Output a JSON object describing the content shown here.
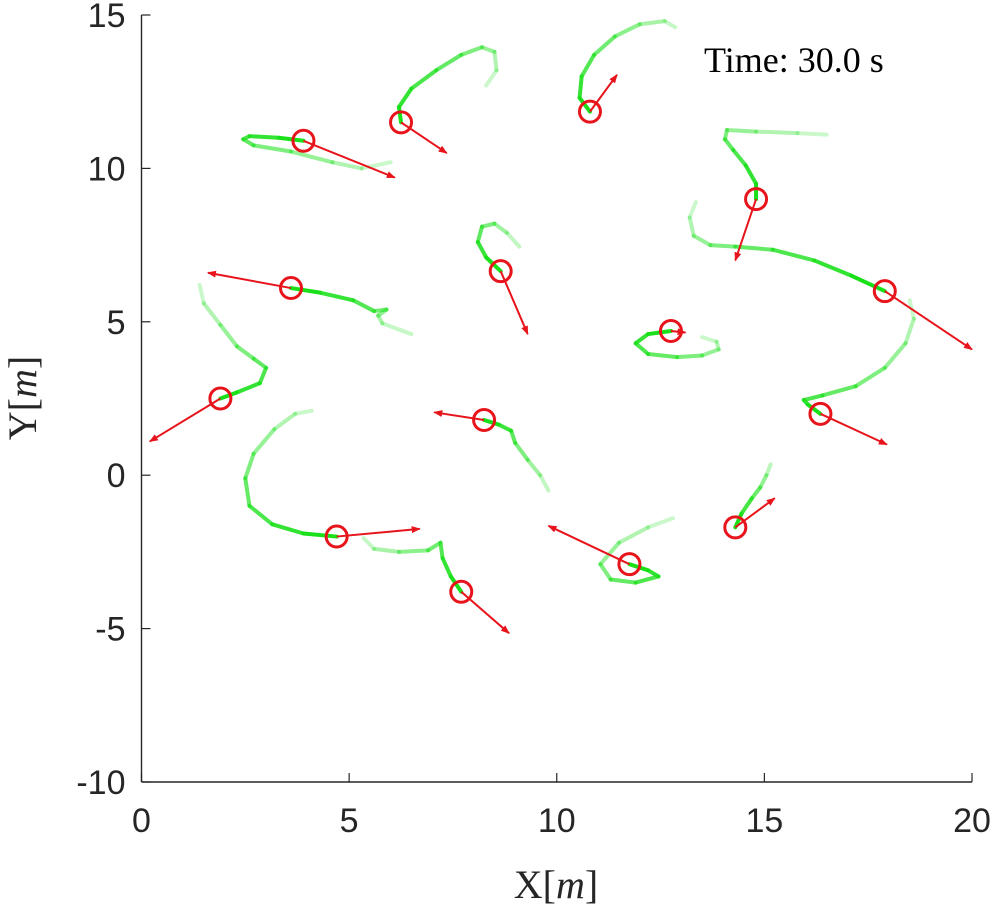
{
  "chart_data": {
    "type": "scatter",
    "title": "",
    "annotation": "Time: 30.0 s",
    "xlabel": {
      "prefix": "X[",
      "unit": "m",
      "suffix": "]"
    },
    "ylabel": {
      "prefix": "Y[",
      "unit": "m",
      "suffix": "]"
    },
    "xlim": [
      0,
      20
    ],
    "ylim": [
      -10,
      15
    ],
    "xticks": [
      0,
      5,
      10,
      15,
      20
    ],
    "yticks": [
      -10,
      -5,
      0,
      5,
      10,
      15
    ],
    "xtick_labels": [
      "0",
      "5",
      "10",
      "15",
      "20"
    ],
    "ytick_labels": [
      "-10",
      "-5",
      "0",
      "5",
      "10",
      "15"
    ],
    "grid": false,
    "colors": {
      "agent": "#e8141b",
      "trail": "#19e019",
      "axis": "#262626"
    },
    "agents": [
      {
        "x": 3.9,
        "y": 10.9,
        "vx": 2.2,
        "vy": -1.2,
        "trail": [
          [
            3.9,
            10.9
          ],
          [
            3.3,
            11.0
          ],
          [
            2.6,
            11.05
          ],
          [
            2.45,
            10.95
          ],
          [
            2.7,
            10.75
          ],
          [
            3.6,
            10.55
          ],
          [
            4.6,
            10.2
          ],
          [
            5.3,
            10.0
          ],
          [
            6.0,
            10.2
          ]
        ]
      },
      {
        "x": 6.25,
        "y": 11.5,
        "vx": 1.1,
        "vy": -1.0,
        "trail": [
          [
            6.25,
            11.5
          ],
          [
            6.2,
            12.0
          ],
          [
            6.5,
            12.6
          ],
          [
            7.1,
            13.2
          ],
          [
            7.7,
            13.7
          ],
          [
            8.2,
            13.95
          ],
          [
            8.5,
            13.8
          ],
          [
            8.55,
            13.2
          ],
          [
            8.3,
            12.7
          ]
        ]
      },
      {
        "x": 10.8,
        "y": 11.85,
        "vx": 0.65,
        "vy": 1.2,
        "trail": [
          [
            10.8,
            11.85
          ],
          [
            10.55,
            12.3
          ],
          [
            10.6,
            13.0
          ],
          [
            10.9,
            13.7
          ],
          [
            11.4,
            14.3
          ],
          [
            12.0,
            14.7
          ],
          [
            12.6,
            14.8
          ],
          [
            12.85,
            14.6
          ]
        ]
      },
      {
        "x": 14.8,
        "y": 9.0,
        "vx": -0.5,
        "vy": -2.0,
        "trail": [
          [
            14.8,
            9.0
          ],
          [
            14.8,
            9.5
          ],
          [
            14.55,
            10.1
          ],
          [
            14.25,
            10.6
          ],
          [
            14.05,
            10.95
          ],
          [
            14.1,
            11.25
          ],
          [
            14.8,
            11.2
          ],
          [
            15.8,
            11.15
          ],
          [
            16.5,
            11.1
          ]
        ]
      },
      {
        "x": 17.9,
        "y": 6.0,
        "vx": 2.1,
        "vy": -1.9,
        "trail": [
          [
            17.9,
            6.0
          ],
          [
            17.1,
            6.5
          ],
          [
            16.2,
            7.0
          ],
          [
            15.2,
            7.35
          ],
          [
            14.3,
            7.45
          ],
          [
            13.7,
            7.5
          ],
          [
            13.3,
            7.8
          ],
          [
            13.2,
            8.4
          ],
          [
            13.35,
            8.9
          ]
        ]
      },
      {
        "x": 16.35,
        "y": 2.0,
        "vx": 1.6,
        "vy": -1.0,
        "trail": [
          [
            16.35,
            2.0
          ],
          [
            16.05,
            2.3
          ],
          [
            15.95,
            2.45
          ],
          [
            16.4,
            2.6
          ],
          [
            17.2,
            2.9
          ],
          [
            17.9,
            3.5
          ],
          [
            18.4,
            4.3
          ],
          [
            18.6,
            5.1
          ],
          [
            18.5,
            5.7
          ]
        ]
      },
      {
        "x": 14.3,
        "y": -1.7,
        "vx": 0.95,
        "vy": 0.95,
        "trail": [
          [
            14.3,
            -1.7
          ],
          [
            14.45,
            -1.25
          ],
          [
            14.7,
            -0.75
          ],
          [
            14.9,
            -0.4
          ],
          [
            15.05,
            0.0
          ],
          [
            15.15,
            0.35
          ]
        ]
      },
      {
        "x": 11.75,
        "y": -2.9,
        "vx": -1.95,
        "vy": 1.25,
        "trail": [
          [
            11.75,
            -2.9
          ],
          [
            12.2,
            -3.1
          ],
          [
            12.45,
            -3.3
          ],
          [
            11.9,
            -3.5
          ],
          [
            11.3,
            -3.4
          ],
          [
            11.05,
            -2.9
          ],
          [
            11.5,
            -2.2
          ],
          [
            12.2,
            -1.7
          ],
          [
            12.8,
            -1.4
          ]
        ]
      },
      {
        "x": 7.7,
        "y": -3.8,
        "vx": 1.15,
        "vy": -1.35,
        "trail": [
          [
            7.7,
            -3.8
          ],
          [
            7.45,
            -3.3
          ],
          [
            7.25,
            -2.7
          ],
          [
            7.2,
            -2.2
          ],
          [
            6.9,
            -2.45
          ],
          [
            6.2,
            -2.5
          ],
          [
            5.6,
            -2.4
          ],
          [
            5.35,
            -2.05
          ]
        ]
      },
      {
        "x": 4.7,
        "y": -2.0,
        "vx": 2.0,
        "vy": 0.25,
        "trail": [
          [
            4.7,
            -2.0
          ],
          [
            3.9,
            -1.9
          ],
          [
            3.15,
            -1.6
          ],
          [
            2.6,
            -1.0
          ],
          [
            2.5,
            -0.1
          ],
          [
            2.7,
            0.7
          ],
          [
            3.2,
            1.5
          ],
          [
            3.7,
            2.0
          ],
          [
            4.1,
            2.1
          ]
        ]
      },
      {
        "x": 1.9,
        "y": 2.5,
        "vx": -1.7,
        "vy": -1.4,
        "trail": [
          [
            1.9,
            2.5
          ],
          [
            2.3,
            2.7
          ],
          [
            2.85,
            3.0
          ],
          [
            3.0,
            3.5
          ],
          [
            2.7,
            3.8
          ],
          [
            2.3,
            4.2
          ],
          [
            1.9,
            4.9
          ],
          [
            1.5,
            5.6
          ],
          [
            1.4,
            6.2
          ]
        ]
      },
      {
        "x": 3.6,
        "y": 6.1,
        "vx": -2.0,
        "vy": 0.5,
        "trail": [
          [
            3.6,
            6.1
          ],
          [
            4.3,
            5.95
          ],
          [
            5.1,
            5.7
          ],
          [
            5.6,
            5.35
          ],
          [
            5.9,
            5.4
          ],
          [
            5.7,
            5.2
          ],
          [
            5.8,
            4.95
          ],
          [
            6.5,
            4.6
          ]
        ]
      },
      {
        "x": 8.65,
        "y": 6.65,
        "vx": 0.65,
        "vy": -2.05,
        "trail": [
          [
            8.65,
            6.65
          ],
          [
            8.3,
            7.1
          ],
          [
            8.1,
            7.6
          ],
          [
            8.2,
            8.1
          ],
          [
            8.5,
            8.2
          ],
          [
            8.8,
            7.9
          ],
          [
            9.1,
            7.45
          ]
        ]
      },
      {
        "x": 12.75,
        "y": 4.7,
        "vx": 0.35,
        "vy": -0.05,
        "trail": [
          [
            12.75,
            4.7
          ],
          [
            12.2,
            4.6
          ],
          [
            11.9,
            4.3
          ],
          [
            12.2,
            3.95
          ],
          [
            12.9,
            3.85
          ],
          [
            13.5,
            3.9
          ],
          [
            13.9,
            4.1
          ],
          [
            13.85,
            4.35
          ],
          [
            13.5,
            4.5
          ]
        ]
      },
      {
        "x": 8.25,
        "y": 1.8,
        "vx": -1.2,
        "vy": 0.25,
        "trail": [
          [
            8.25,
            1.8
          ],
          [
            8.6,
            1.65
          ],
          [
            8.9,
            1.45
          ],
          [
            9.0,
            1.05
          ],
          [
            9.3,
            0.5
          ],
          [
            9.6,
            0.0
          ],
          [
            9.8,
            -0.5
          ]
        ]
      }
    ]
  }
}
